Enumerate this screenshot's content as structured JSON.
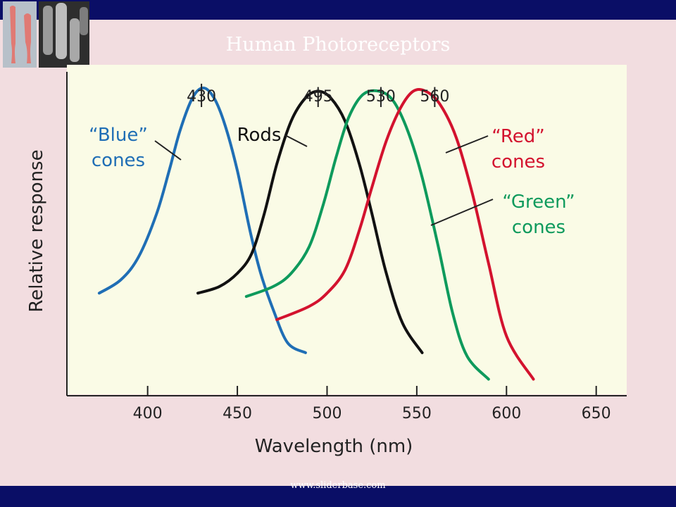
{
  "slide": {
    "title": "Human Photoreceptors",
    "footer": "www.sliderbase.com"
  },
  "colors": {
    "header_bar": "#0a0e66",
    "background": "#f2dde0",
    "plot_bg": "#fafbe6",
    "blue": "#1f6eb5",
    "black": "#111111",
    "green": "#0e9a5c",
    "red": "#d3122e"
  },
  "chart_data": {
    "type": "line",
    "title": "",
    "xlabel": "Wavelength (nm)",
    "ylabel": "Relative response",
    "xlim": [
      355,
      667
    ],
    "ylim": [
      0,
      1
    ],
    "xticks": [
      400,
      450,
      500,
      550,
      600,
      650
    ],
    "grid": false,
    "series": [
      {
        "name": "“Blue” cones",
        "label_lines": [
          "“Blue”",
          "cones"
        ],
        "color_key": "blue",
        "peak_label": "430",
        "x": [
          373,
          385,
          395,
          405,
          412,
          418,
          425,
          431,
          437,
          443,
          450,
          457,
          463,
          470,
          478,
          488
        ],
        "y": [
          0.31,
          0.35,
          0.42,
          0.55,
          0.68,
          0.8,
          0.9,
          0.93,
          0.9,
          0.82,
          0.68,
          0.5,
          0.37,
          0.26,
          0.16,
          0.13
        ]
      },
      {
        "name": "Rods",
        "label_lines": [
          "Rods"
        ],
        "color_key": "black",
        "peak_label": "495",
        "x": [
          428,
          440,
          450,
          458,
          465,
          472,
          480,
          488,
          495,
          502,
          510,
          518,
          525,
          533,
          542,
          553
        ],
        "y": [
          0.31,
          0.33,
          0.37,
          0.43,
          0.55,
          0.7,
          0.83,
          0.9,
          0.92,
          0.9,
          0.83,
          0.7,
          0.55,
          0.37,
          0.22,
          0.13
        ]
      },
      {
        "name": "“Green” cones",
        "label_lines": [
          "“Green”",
          "cones"
        ],
        "color_key": "green",
        "peak_label": "530",
        "x": [
          455,
          470,
          480,
          490,
          498,
          505,
          512,
          520,
          529,
          537,
          545,
          553,
          562,
          570,
          578,
          590
        ],
        "y": [
          0.3,
          0.33,
          0.37,
          0.45,
          0.58,
          0.72,
          0.84,
          0.91,
          0.92,
          0.89,
          0.8,
          0.66,
          0.45,
          0.25,
          0.12,
          0.05
        ]
      },
      {
        "name": "“Red” cones",
        "label_lines": [
          "“Red”",
          "cones"
        ],
        "color_key": "red",
        "peak_label": "560",
        "x": [
          472,
          490,
          500,
          510,
          518,
          525,
          533,
          541,
          548,
          555,
          563,
          572,
          581,
          590,
          600,
          615
        ],
        "y": [
          0.23,
          0.27,
          0.31,
          0.38,
          0.5,
          0.63,
          0.77,
          0.87,
          0.92,
          0.92,
          0.88,
          0.78,
          0.61,
          0.4,
          0.18,
          0.05
        ]
      }
    ]
  }
}
